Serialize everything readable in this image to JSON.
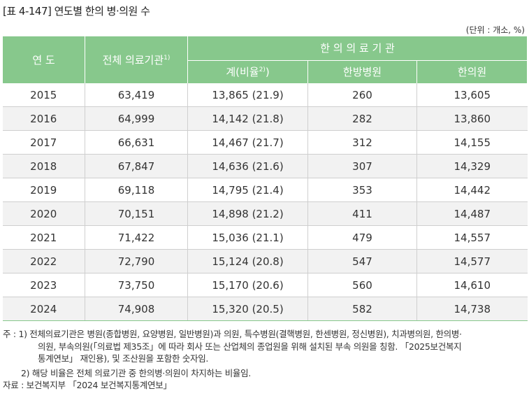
{
  "title": "[표 4-147] 연도별 한의 병·의원 수",
  "unit": "(단위 : 개소, %)",
  "header": {
    "year": "연 도",
    "total": "전체 의료기관",
    "total_sup": "1)",
    "group": "한 의 의 료 기 관",
    "sub_total": "계(비율",
    "sub_total_sup": "2)",
    "sub_total_close": ")",
    "hospital": "한방병원",
    "clinic": "한의원"
  },
  "rows": [
    {
      "year": "2015",
      "total": "63,419",
      "sum": "13,865 (21.9)",
      "hospital": "260",
      "clinic": "13,605"
    },
    {
      "year": "2016",
      "total": "64,999",
      "sum": "14,142 (21.8)",
      "hospital": "282",
      "clinic": "13,860"
    },
    {
      "year": "2017",
      "total": "66,631",
      "sum": "14,467 (21.7)",
      "hospital": "312",
      "clinic": "14,155"
    },
    {
      "year": "2018",
      "total": "67,847",
      "sum": "14,636 (21.6)",
      "hospital": "307",
      "clinic": "14,329"
    },
    {
      "year": "2019",
      "total": "69,118",
      "sum": "14,795 (21.4)",
      "hospital": "353",
      "clinic": "14,442"
    },
    {
      "year": "2020",
      "total": "70,151",
      "sum": "14,898 (21.2)",
      "hospital": "411",
      "clinic": "14,487"
    },
    {
      "year": "2021",
      "total": "71,422",
      "sum": "15,036 (21.1)",
      "hospital": "479",
      "clinic": "14,557"
    },
    {
      "year": "2022",
      "total": "72,790",
      "sum": "15,124 (20.8)",
      "hospital": "547",
      "clinic": "14,577"
    },
    {
      "year": "2023",
      "total": "73,750",
      "sum": "15,170 (20.6)",
      "hospital": "560",
      "clinic": "14,610"
    },
    {
      "year": "2024",
      "total": "74,908",
      "sum": "15,320 (20.5)",
      "hospital": "582",
      "clinic": "14,738"
    }
  ],
  "notes": {
    "n1_prefix": "주 : 1) ",
    "n1_line1": "전체의료기관은 병원(종합병원, 요양병원, 일반병원)과 의원, 특수병원(결핵병원, 한센병원, 정신병원), 치과병의원, 한의병·",
    "n1_line2": "의원, 부속의원(「의료법 제35조」에 따라 회사 또는 산업체의 종업원을 위해 설치된 부속 의원을 칭함. 「2025보건복지",
    "n1_line3": "통계연보」 재인용), 및 조산원을 포함한 숫자임.",
    "n2_prefix": "2) ",
    "n2_text": "해당 비율은 전체 의료기관 중 한의병·의원이 차지하는 비율임.",
    "source": "자료 : 보건복지부 「2024 보건복지통계연보」"
  },
  "colors": {
    "header_green": "#87c88c",
    "stripe": "#f2f2f2"
  }
}
